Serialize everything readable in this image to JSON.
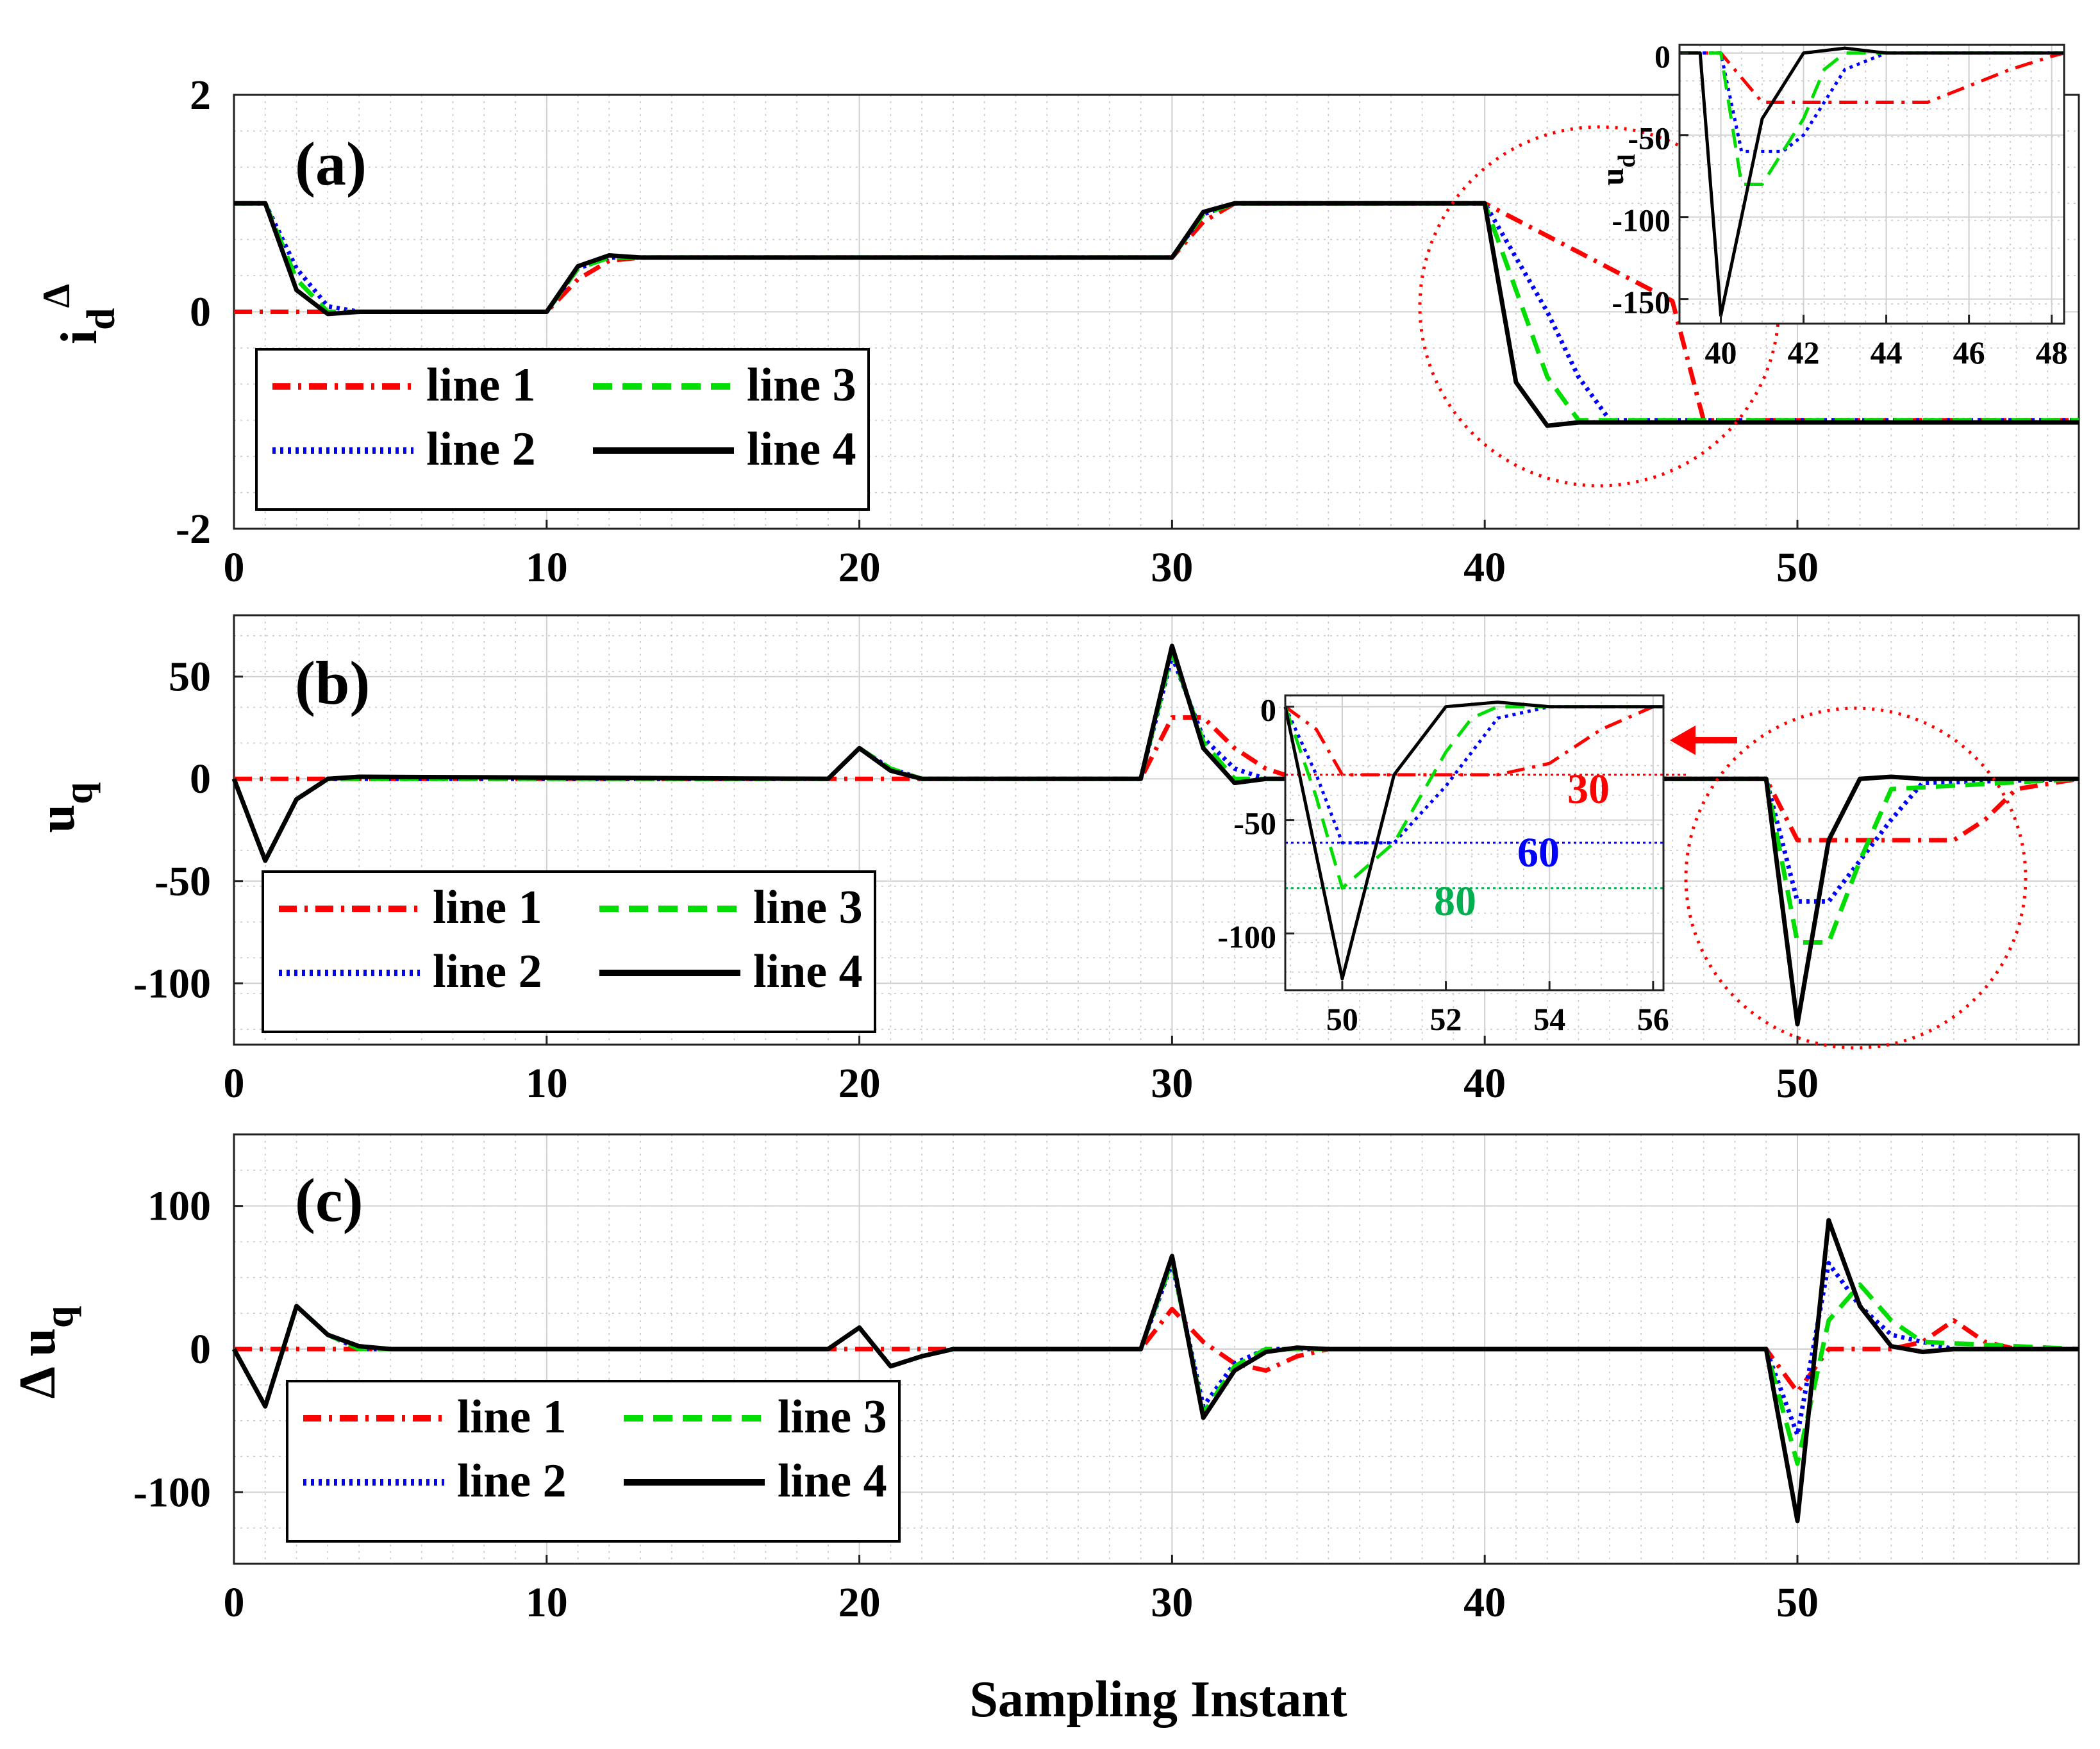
{
  "figure": {
    "xlabel": "Sampling Instant"
  },
  "legend_labels": [
    "line 1",
    "line 3",
    "line 2",
    "line 4"
  ],
  "colors": {
    "line1": "#ff0000",
    "line2": "#0000ff",
    "line3": "#00dd00",
    "line4": "#000000",
    "annotation_30": "#ff0000",
    "annotation_60": "#0000ff",
    "annotation_80": "#00b050",
    "zoom_circle": "#ff0000"
  },
  "chart_data": [
    {
      "id": "a",
      "type": "line",
      "panel_label": "(a)",
      "ylabel_main": "i",
      "ylabel_sub": "d",
      "ylabel_sup": "Δ",
      "xlim": [
        0,
        59
      ],
      "ylim": [
        -2,
        2
      ],
      "xticks": [
        0,
        10,
        20,
        30,
        40,
        50
      ],
      "yticks": [
        2,
        0,
        -2
      ],
      "legend_position": "bottom-left",
      "series": [
        {
          "name": "line 1",
          "x": [
            0,
            1,
            10,
            11,
            12,
            13,
            30,
            31,
            32,
            40,
            41,
            42,
            43,
            44,
            45,
            46,
            47,
            59
          ],
          "y": [
            0,
            0,
            0,
            0.3,
            0.47,
            0.5,
            0.5,
            0.83,
            1,
            1,
            0.85,
            0.7,
            0.55,
            0.4,
            0.25,
            0.1,
            -1,
            -1
          ]
        },
        {
          "name": "line 2",
          "x": [
            0,
            1,
            2,
            3,
            4,
            10,
            11,
            12,
            30,
            31,
            32,
            40,
            41,
            42,
            43,
            44,
            59
          ],
          "y": [
            1,
            1,
            0.4,
            0.05,
            0,
            0,
            0.4,
            0.5,
            0.5,
            0.9,
            1,
            1,
            0.5,
            0,
            -0.6,
            -1,
            -1
          ]
        },
        {
          "name": "line 3",
          "x": [
            0,
            1,
            2,
            3,
            10,
            11,
            12,
            30,
            31,
            32,
            40,
            41,
            42,
            43,
            59
          ],
          "y": [
            1,
            1,
            0.3,
            0,
            0,
            0.4,
            0.5,
            0.5,
            0.9,
            1,
            1,
            0.2,
            -0.6,
            -1,
            -1
          ]
        },
        {
          "name": "line 4",
          "x": [
            0,
            1,
            2,
            3,
            4,
            10,
            11,
            12,
            13,
            30,
            31,
            32,
            40,
            41,
            42,
            43,
            59
          ],
          "y": [
            1,
            1,
            0.2,
            -0.02,
            0,
            0,
            0.42,
            0.52,
            0.5,
            0.5,
            0.92,
            1,
            1,
            -0.65,
            -1.05,
            -1.02,
            -1.02
          ]
        }
      ],
      "inset": {
        "type": "line",
        "ylabel": "u",
        "ylabel_sub": "d",
        "xlim": [
          39,
          48.3
        ],
        "ylim": [
          -165,
          5
        ],
        "xticks": [
          40,
          42,
          44,
          46,
          48
        ],
        "yticks": [
          0,
          -50,
          -100,
          -150
        ],
        "series": [
          {
            "name": "line 1",
            "x": [
              39,
              40,
              41,
              45,
              46,
              47,
              48,
              48.3
            ],
            "y": [
              0,
              0,
              -30,
              -30,
              -20,
              -10,
              -2,
              0
            ]
          },
          {
            "name": "line 2",
            "x": [
              39,
              40,
              40.5,
              41.5,
              42,
              43,
              44,
              48.3
            ],
            "y": [
              0,
              0,
              -60,
              -60,
              -50,
              -10,
              0,
              0
            ]
          },
          {
            "name": "line 3",
            "x": [
              39,
              40,
              40.5,
              41,
              42,
              42.5,
              43,
              48.3
            ],
            "y": [
              0,
              0,
              -80,
              -80,
              -40,
              -10,
              0,
              0
            ]
          },
          {
            "name": "line 4",
            "x": [
              39,
              39.5,
              40,
              41,
              42,
              43,
              44,
              48.3
            ],
            "y": [
              0,
              0,
              -160,
              -40,
              0,
              3,
              0,
              0
            ]
          }
        ]
      }
    },
    {
      "id": "b",
      "type": "line",
      "panel_label": "(b)",
      "ylabel_main": "u",
      "ylabel_sub": "q",
      "xlim": [
        0,
        59
      ],
      "ylim": [
        -130,
        80
      ],
      "xticks": [
        0,
        10,
        20,
        30,
        40,
        50
      ],
      "yticks": [
        50,
        0,
        -50,
        -100
      ],
      "legend_position": "bottom-left",
      "series": [
        {
          "name": "line 1",
          "x": [
            0,
            29,
            30,
            31,
            32,
            33,
            34,
            49,
            50,
            55,
            56,
            57,
            59
          ],
          "y": [
            0,
            0,
            30,
            30,
            15,
            5,
            0,
            0,
            -30,
            -30,
            -20,
            -5,
            0
          ]
        },
        {
          "name": "line 2",
          "x": [
            0,
            1,
            2,
            3,
            4,
            19,
            20,
            21,
            22,
            29,
            30,
            31,
            32,
            33,
            49,
            50,
            51,
            52,
            53,
            54,
            59
          ],
          "y": [
            0,
            -40,
            -10,
            0,
            0,
            0,
            15,
            5,
            0,
            0,
            60,
            20,
            5,
            0,
            0,
            -60,
            -60,
            -40,
            -20,
            -2,
            0
          ]
        },
        {
          "name": "line 3",
          "x": [
            0,
            1,
            2,
            3,
            4,
            19,
            20,
            21,
            22,
            29,
            30,
            31,
            32,
            33,
            49,
            50,
            51,
            52,
            53,
            59
          ],
          "y": [
            0,
            -40,
            -10,
            0,
            0,
            0,
            15,
            5,
            0,
            0,
            62,
            18,
            0,
            0,
            0,
            -80,
            -80,
            -40,
            -5,
            0
          ]
        },
        {
          "name": "line 4",
          "x": [
            0,
            1,
            2,
            3,
            4,
            19,
            20,
            21,
            22,
            29,
            30,
            31,
            32,
            33,
            49,
            50,
            51,
            52,
            53,
            54,
            59
          ],
          "y": [
            0,
            -40,
            -10,
            0,
            1,
            0,
            15,
            4,
            0,
            0,
            65,
            15,
            -2,
            0,
            0,
            -120,
            -30,
            0,
            1,
            0,
            0
          ]
        }
      ],
      "inset": {
        "type": "line",
        "xlim": [
          48.9,
          56.2
        ],
        "ylim": [
          -125,
          5
        ],
        "xticks": [
          50,
          52,
          54,
          56
        ],
        "yticks": [
          0,
          -50,
          -100
        ],
        "annotations": [
          "30",
          "60",
          "80"
        ],
        "reference_levels": [
          -30,
          -60,
          -80
        ],
        "series": [
          {
            "name": "line 1",
            "x": [
              48.9,
              49.5,
              50,
              52,
              53,
              54,
              55,
              56,
              56.2
            ],
            "y": [
              0,
              -10,
              -30,
              -30,
              -30,
              -25,
              -10,
              0,
              0
            ]
          },
          {
            "name": "line 2",
            "x": [
              48.9,
              49.5,
              50,
              51,
              52,
              53,
              54,
              56.2
            ],
            "y": [
              0,
              -30,
              -60,
              -60,
              -35,
              -5,
              0,
              0
            ]
          },
          {
            "name": "line 3",
            "x": [
              48.9,
              49.5,
              50,
              51,
              52,
              52.5,
              53,
              56.2
            ],
            "y": [
              0,
              -40,
              -80,
              -60,
              -20,
              -5,
              0,
              0
            ]
          },
          {
            "name": "line 4",
            "x": [
              48.9,
              50,
              51,
              52,
              53,
              54,
              56.2
            ],
            "y": [
              0,
              -120,
              -30,
              0,
              2,
              0,
              0
            ]
          }
        ]
      }
    },
    {
      "id": "c",
      "type": "line",
      "panel_label": "(c)",
      "ylabel_main": "Δ u",
      "ylabel_sub": "q",
      "xlim": [
        0,
        59
      ],
      "ylim": [
        -150,
        150
      ],
      "xticks": [
        0,
        10,
        20,
        30,
        40,
        50
      ],
      "yticks": [
        100,
        0,
        -100
      ],
      "legend_position": "bottom-left",
      "series": [
        {
          "name": "line 1",
          "x": [
            0,
            29,
            30,
            31,
            32,
            33,
            34,
            35,
            49,
            50,
            51,
            52,
            53,
            54,
            55,
            56,
            57,
            59
          ],
          "y": [
            0,
            0,
            28,
            5,
            -10,
            -15,
            -5,
            0,
            0,
            -30,
            0,
            0,
            0,
            5,
            20,
            5,
            0,
            0
          ]
        },
        {
          "name": "line 2",
          "x": [
            0,
            1,
            2,
            3,
            4,
            19,
            20,
            21,
            22,
            23,
            29,
            30,
            31,
            32,
            33,
            34,
            49,
            50,
            51,
            52,
            53,
            54,
            55,
            59
          ],
          "y": [
            0,
            -40,
            30,
            10,
            0,
            0,
            15,
            -12,
            -5,
            0,
            0,
            60,
            -40,
            -10,
            0,
            0,
            0,
            -60,
            60,
            30,
            10,
            5,
            0,
            0
          ]
        },
        {
          "name": "line 3",
          "x": [
            0,
            1,
            2,
            3,
            4,
            19,
            20,
            21,
            22,
            23,
            29,
            30,
            31,
            32,
            33,
            34,
            49,
            50,
            51,
            52,
            53,
            54,
            59
          ],
          "y": [
            0,
            -40,
            30,
            10,
            0,
            0,
            15,
            -12,
            -5,
            0,
            0,
            62,
            -45,
            -12,
            0,
            0,
            0,
            -80,
            20,
            45,
            20,
            5,
            0
          ]
        },
        {
          "name": "line 4",
          "x": [
            0,
            1,
            2,
            3,
            4,
            5,
            19,
            20,
            21,
            22,
            23,
            29,
            30,
            31,
            32,
            33,
            34,
            35,
            49,
            50,
            51,
            52,
            53,
            54,
            55,
            59
          ],
          "y": [
            0,
            -40,
            30,
            10,
            2,
            0,
            0,
            15,
            -12,
            -5,
            0,
            0,
            65,
            -48,
            -15,
            -2,
            1,
            0,
            0,
            -120,
            90,
            30,
            2,
            -2,
            0,
            0
          ]
        }
      ]
    }
  ]
}
